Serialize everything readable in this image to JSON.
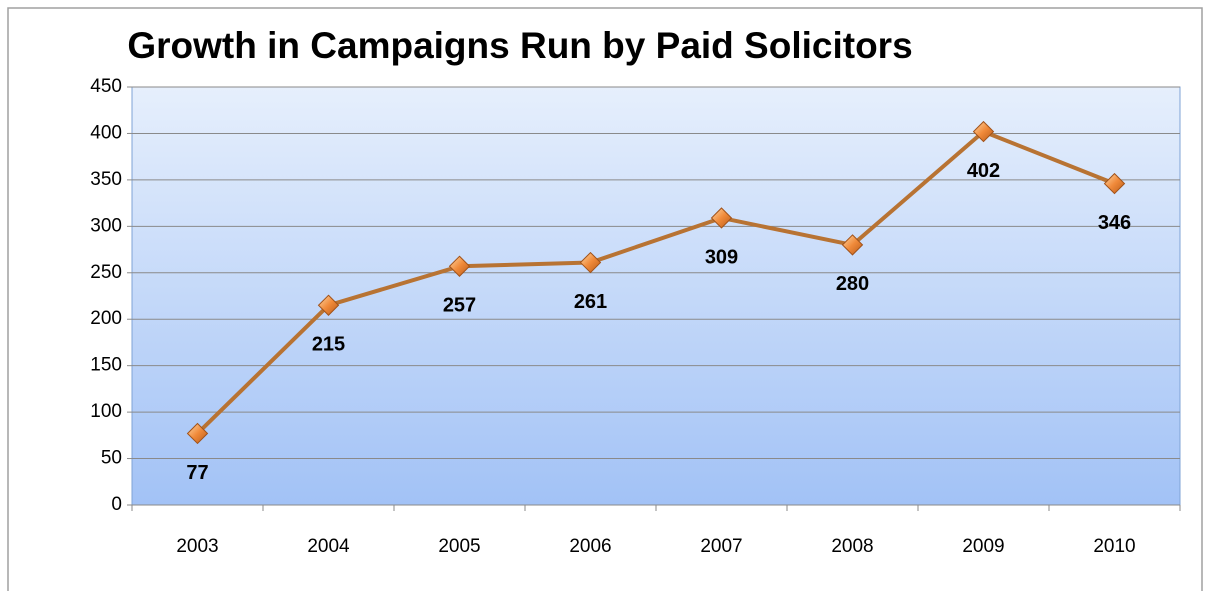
{
  "chart_data": {
    "type": "line",
    "title": "Growth in Campaigns Run by Paid Solicitors",
    "categories": [
      "2003",
      "2004",
      "2005",
      "2006",
      "2007",
      "2008",
      "2009",
      "2010"
    ],
    "values": [
      77,
      215,
      257,
      261,
      309,
      280,
      402,
      346
    ],
    "color": "#b87333",
    "ylim": [
      0,
      450
    ],
    "yticks": [
      0,
      50,
      100,
      150,
      200,
      250,
      300,
      350,
      400,
      450
    ],
    "grid": true
  }
}
